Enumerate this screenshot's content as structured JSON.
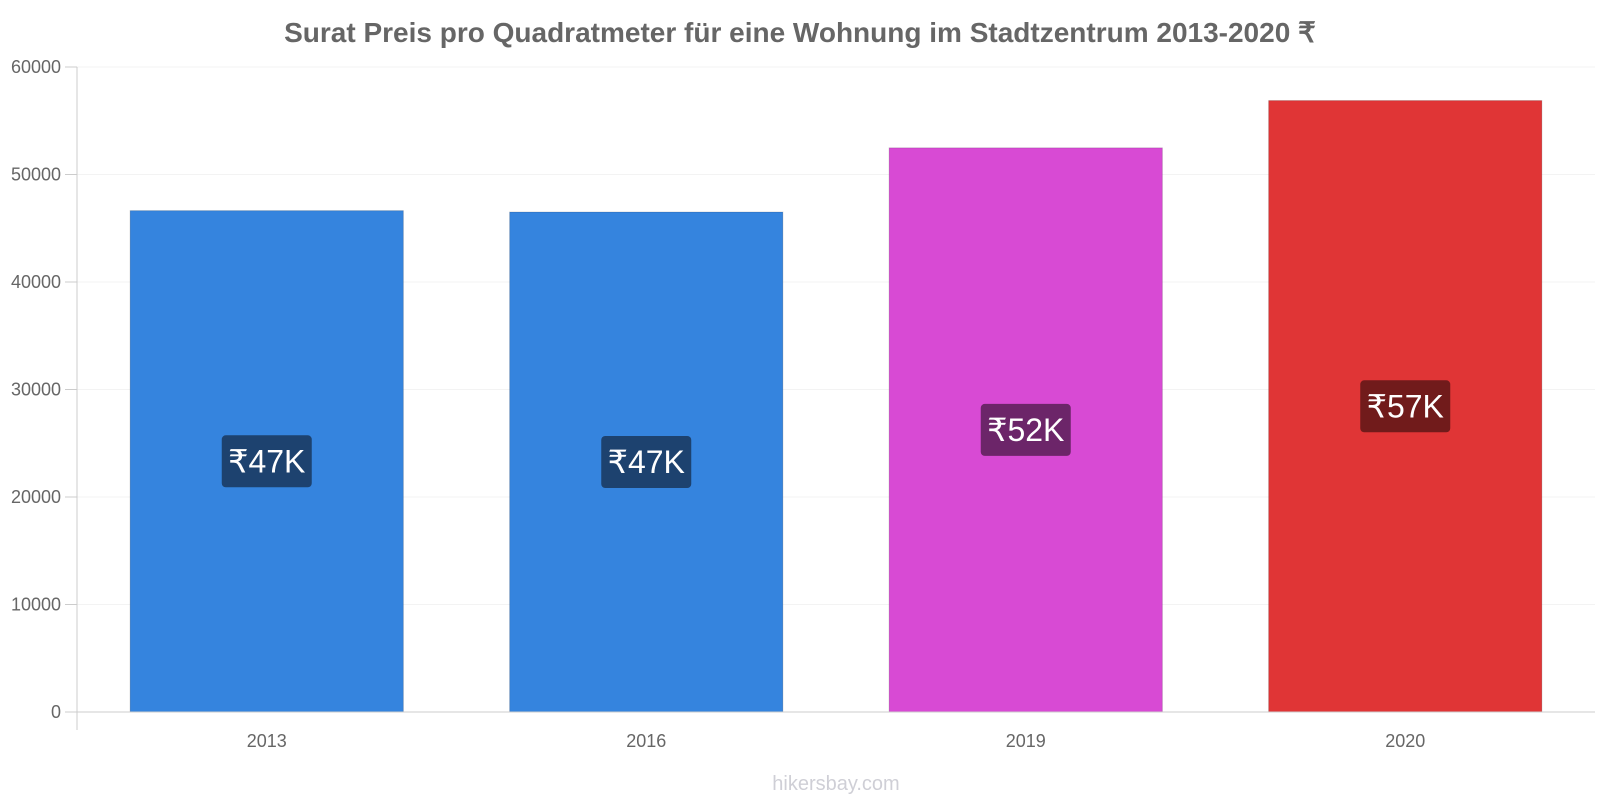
{
  "chart_data": {
    "type": "bar",
    "title": "Surat Preis pro Quadratmeter für eine Wohnung im Stadtzentrum 2013-2020 ₹",
    "categories": [
      "2013",
      "2016",
      "2019",
      "2020"
    ],
    "values": [
      46640,
      46510,
      52480,
      56880
    ],
    "value_labels": [
      "₹47K",
      "₹47K",
      "₹52K",
      "₹57K"
    ],
    "bar_colors": [
      "#3584DE",
      "#3584DE",
      "#D84AD4",
      "#E03536"
    ],
    "label_box_colors": [
      "#1D426F",
      "#1D426F",
      "#6C2569",
      "#711B1B"
    ],
    "ylim": [
      0,
      60000
    ],
    "yticks": [
      "0",
      "10000",
      "20000",
      "30000",
      "40000",
      "50000",
      "60000"
    ],
    "xlabel": "",
    "ylabel": "",
    "grid": true,
    "legend": "none"
  },
  "watermark": "hikersbay.com"
}
